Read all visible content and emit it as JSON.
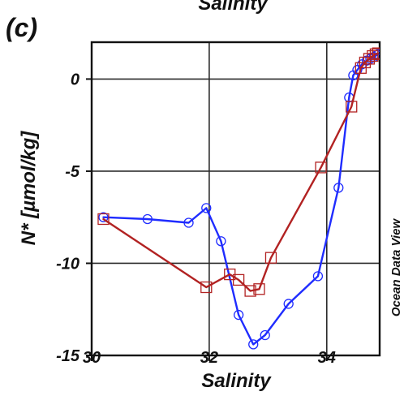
{
  "figure": {
    "top_title": "Salinity",
    "panel_label": "(c)",
    "credit": "Ocean Data View"
  },
  "chart_data": {
    "type": "line",
    "xlabel": "Salinity",
    "ylabel": "N* [µmol/kg]",
    "xlim": [
      30,
      34.9
    ],
    "ylim": [
      -15,
      2
    ],
    "x_ticks": [
      30,
      32,
      34
    ],
    "x_tick_labels": [
      "30",
      "32",
      "34"
    ],
    "y_ticks": [
      -15,
      -10,
      -5,
      0
    ],
    "y_tick_labels": [
      "-15",
      "-10",
      "-5",
      "0"
    ],
    "grid": true,
    "legend": "none",
    "series": [
      {
        "marker": "circle",
        "color": "#1f2cff",
        "x": [
          30.2,
          30.95,
          31.65,
          31.95,
          32.2,
          32.5,
          32.75,
          32.95,
          33.35,
          33.85,
          34.2,
          34.38,
          34.45,
          34.52,
          34.6,
          34.68,
          34.74,
          34.8,
          34.85,
          34.88
        ],
        "y": [
          -7.5,
          -7.6,
          -7.8,
          -7.0,
          -8.8,
          -12.8,
          -14.4,
          -13.9,
          -12.2,
          -10.7,
          -5.9,
          -1.0,
          0.2,
          0.5,
          0.8,
          1.0,
          1.1,
          1.2,
          1.3,
          1.35
        ]
      },
      {
        "marker": "square",
        "color": "#b22222",
        "x": [
          30.2,
          31.95,
          32.35,
          32.5,
          32.7,
          32.85,
          33.05,
          33.9,
          34.42,
          34.58,
          34.65,
          34.72,
          34.78,
          34.83,
          34.87
        ],
        "y": [
          -7.6,
          -11.3,
          -10.6,
          -10.9,
          -11.5,
          -11.4,
          -9.7,
          -4.8,
          -1.5,
          0.6,
          0.9,
          1.1,
          1.25,
          1.35,
          1.4
        ]
      }
    ]
  }
}
